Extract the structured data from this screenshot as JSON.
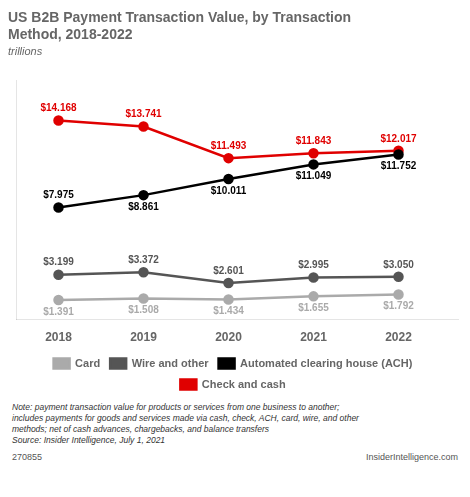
{
  "chart_data": {
    "type": "line",
    "title": "US B2B Payment Transaction Value, by Transaction\nMethod, 2018-2022",
    "subtitle": "trillions",
    "x": [
      2018,
      2019,
      2020,
      2021,
      2022
    ],
    "series": [
      {
        "name": "Card",
        "color": "#aaaaaa",
        "values": [
          1.391,
          1.508,
          1.434,
          1.655,
          1.792
        ],
        "value_labels": [
          "$1.391",
          "$1.508",
          "$1.434",
          "$1.655",
          "$1.792"
        ]
      },
      {
        "name": "Wire and other",
        "color": "#555555",
        "values": [
          3.199,
          3.372,
          2.601,
          2.995,
          3.05
        ],
        "value_labels": [
          "$3.199",
          "$3.372",
          "$2.601",
          "$2.995",
          "$3.050"
        ]
      },
      {
        "name": "Automated clearing house (ACH)",
        "color": "#000000",
        "values": [
          7.975,
          8.861,
          10.011,
          11.049,
          11.752
        ],
        "value_labels": [
          "$7.975",
          "$8.861",
          "$10.011",
          "$11.049",
          "$11.752"
        ]
      },
      {
        "name": "Check and cash",
        "color": "#e00000",
        "values": [
          14.168,
          13.741,
          11.493,
          11.843,
          12.017
        ],
        "value_labels": [
          "$14.168",
          "$13.741",
          "$11.493",
          "$11.843",
          "$12.017"
        ]
      }
    ],
    "xlim": [
      2017.5,
      2022.7
    ],
    "xticks": [
      2018,
      2019,
      2020,
      2021,
      2022
    ],
    "ylim": [
      0,
      17
    ],
    "grid": false,
    "legend": "bottom",
    "tick_labels": "x",
    "data_labels": true,
    "marker": "circle",
    "annotations": [
      "Note: payment transaction value for products or services from one business to another;\nincludes payments for goods and services made via cash, check, ACH, card, wire, and other\nmethods; net of cash advances, chargebacks, and balance transfers\nSource: Insider Intelligence, July 1, 2021",
      "270855",
      "InsiderIntelligence.com"
    ]
  }
}
